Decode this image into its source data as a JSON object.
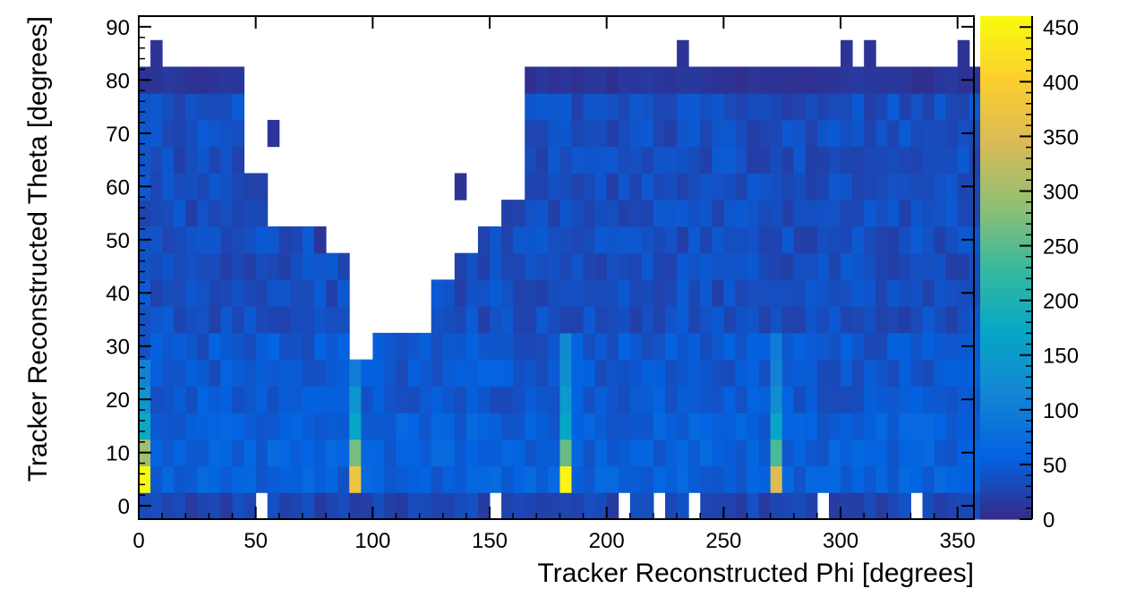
{
  "chart_data": {
    "type": "heatmap",
    "xlabel": "Tracker Reconstructed Phi [degrees]",
    "ylabel": "Tracker Reconstructed Theta [degrees]",
    "xlim": [
      0,
      357
    ],
    "ylim": [
      -2.5,
      92
    ],
    "x_ticks": [
      0,
      50,
      100,
      150,
      200,
      250,
      300,
      350
    ],
    "y_ticks": [
      0,
      10,
      20,
      30,
      40,
      50,
      60,
      70,
      80,
      90
    ],
    "z_range": [
      0,
      460
    ],
    "z_ticks": [
      0,
      50,
      100,
      150,
      200,
      250,
      300,
      350,
      400,
      450
    ],
    "colormap": "parula",
    "bin_width_x": 5,
    "bin_width_y": 5,
    "empty_bins_note": "blank where no entries",
    "hot_columns": [
      {
        "phi": 90,
        "theta_values": [
          [
            5,
            380
          ],
          [
            10,
            270
          ],
          [
            15,
            170
          ],
          [
            20,
            140
          ],
          [
            25,
            100
          ]
        ]
      },
      {
        "phi": 180,
        "theta_values": [
          [
            5,
            450
          ],
          [
            10,
            260
          ],
          [
            15,
            170
          ],
          [
            20,
            150
          ],
          [
            25,
            130
          ],
          [
            30,
            120
          ]
        ]
      },
      {
        "phi": 270,
        "theta_values": [
          [
            5,
            350
          ],
          [
            10,
            240
          ],
          [
            15,
            170
          ],
          [
            20,
            130
          ],
          [
            25,
            110
          ],
          [
            30,
            100
          ]
        ]
      },
      {
        "phi": 0,
        "theta_values": [
          [
            5,
            460
          ],
          [
            10,
            300
          ],
          [
            15,
            180
          ],
          [
            20,
            140
          ],
          [
            25,
            110
          ]
        ]
      }
    ]
  },
  "colors": {
    "parula_stops": [
      "#352a87",
      "#0363e1",
      "#1485d4",
      "#06a7c6",
      "#38b99e",
      "#92bf73",
      "#d9ba56",
      "#fcce2e",
      "#f9fb0e"
    ]
  }
}
